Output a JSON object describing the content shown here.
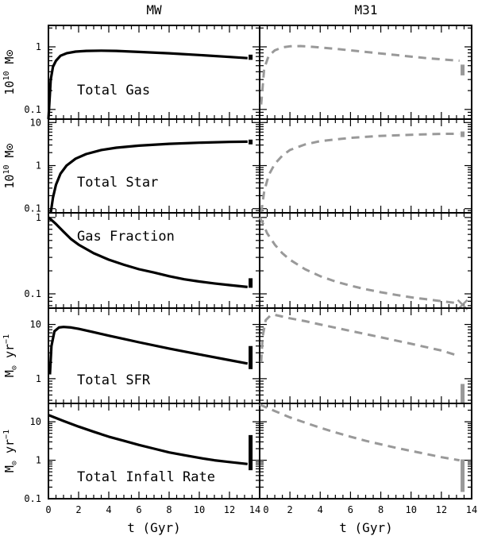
{
  "columns": [
    {
      "title": "MW"
    },
    {
      "title": "M31"
    }
  ],
  "xaxis": {
    "label": "t (Gyr)",
    "range": [
      0,
      14
    ],
    "ticks": [
      "0",
      "2",
      "4",
      "6",
      "8",
      "10",
      "12",
      "14"
    ]
  },
  "chart_data": [
    {
      "type": "line",
      "panel": "Total Gas",
      "ylabel": "10^10 M_sun",
      "ylabel_display": "10",
      "yscale": "log",
      "ylim": [
        0.07,
        2.2
      ],
      "yticks": [
        "1",
        "0.1"
      ],
      "series": [
        {
          "column": "MW",
          "style": "solid",
          "color": "#000000",
          "x": [
            0,
            0.15,
            0.3,
            0.5,
            0.8,
            1.2,
            1.8,
            2.5,
            3.5,
            4.5,
            6,
            8,
            10,
            12,
            13.2
          ],
          "y": [
            0.07,
            0.3,
            0.48,
            0.6,
            0.72,
            0.79,
            0.84,
            0.86,
            0.87,
            0.86,
            0.83,
            0.79,
            0.74,
            0.69,
            0.66
          ]
        },
        {
          "column": "M31",
          "style": "dashed",
          "color": "#999999",
          "x": [
            0.1,
            0.3,
            0.6,
            1,
            1.5,
            2,
            2.7,
            3.5,
            5,
            7,
            9,
            11,
            13.2
          ],
          "y": [
            0.12,
            0.45,
            0.72,
            0.88,
            0.98,
            1.02,
            1.03,
            1.0,
            0.93,
            0.83,
            0.74,
            0.66,
            0.6
          ]
        }
      ],
      "observations": [
        {
          "column": "MW",
          "x": 13.4,
          "y_low": 0.62,
          "y_high": 0.75
        },
        {
          "column": "M31",
          "x": 13.4,
          "y_low": 0.35,
          "y_high": 0.52
        }
      ]
    },
    {
      "type": "line",
      "panel": "Total Star",
      "ylabel": "10^10 M_sun",
      "ylabel_display": "10",
      "yscale": "log",
      "ylim": [
        0.08,
        12
      ],
      "yticks": [
        "10",
        "1",
        "0.1"
      ],
      "series": [
        {
          "column": "MW",
          "style": "solid",
          "color": "#000000",
          "x": [
            0.15,
            0.3,
            0.5,
            0.8,
            1.2,
            1.8,
            2.5,
            3.5,
            4.5,
            6,
            8,
            10,
            12,
            13.2
          ],
          "y": [
            0.08,
            0.18,
            0.36,
            0.65,
            1.0,
            1.45,
            1.85,
            2.3,
            2.6,
            2.9,
            3.2,
            3.4,
            3.55,
            3.6
          ]
        },
        {
          "column": "M31",
          "style": "dashed",
          "color": "#999999",
          "x": [
            0.1,
            0.3,
            0.6,
            1,
            1.5,
            2,
            3,
            4,
            6,
            8,
            10,
            12,
            13.2
          ],
          "y": [
            0.08,
            0.25,
            0.6,
            1.1,
            1.7,
            2.3,
            3.1,
            3.7,
            4.4,
            4.9,
            5.2,
            5.45,
            5.5
          ]
        }
      ],
      "observations": [
        {
          "column": "MW",
          "x": 13.4,
          "y_low": 3.2,
          "y_high": 3.9
        },
        {
          "column": "M31",
          "x": 13.4,
          "y_low": 4.6,
          "y_high": 6.2
        }
      ]
    },
    {
      "type": "line",
      "panel": "Gas Fraction",
      "ylabel": "",
      "yscale": "log",
      "ylim": [
        0.065,
        1.15
      ],
      "yticks": [
        "1",
        "0.1"
      ],
      "series": [
        {
          "column": "MW",
          "style": "solid",
          "color": "#000000",
          "x": [
            0,
            0.2,
            0.5,
            1,
            1.5,
            2,
            3,
            4,
            5,
            6,
            7,
            8,
            9,
            10,
            11,
            12,
            13.2
          ],
          "y": [
            1.0,
            0.93,
            0.82,
            0.65,
            0.52,
            0.44,
            0.34,
            0.28,
            0.24,
            0.21,
            0.19,
            0.17,
            0.155,
            0.145,
            0.137,
            0.13,
            0.123
          ]
        },
        {
          "column": "M31",
          "style": "dashed",
          "color": "#999999",
          "x": [
            0,
            0.2,
            0.5,
            1,
            1.5,
            2,
            3,
            4,
            5,
            6,
            7,
            8,
            9,
            10,
            11,
            12,
            13.2
          ],
          "y": [
            1.0,
            0.85,
            0.62,
            0.44,
            0.34,
            0.28,
            0.21,
            0.17,
            0.145,
            0.128,
            0.115,
            0.105,
            0.097,
            0.09,
            0.085,
            0.08,
            0.075
          ]
        }
      ],
      "observations": [
        {
          "column": "MW",
          "x": 13.4,
          "y_low": 0.12,
          "y_high": 0.16
        },
        {
          "column": "M31",
          "x": 13.4,
          "y_low": 0.072,
          "y_high": 0.072,
          "marker": "x"
        }
      ]
    },
    {
      "type": "line",
      "panel": "Total SFR",
      "ylabel": "M_sun yr^-1",
      "ylabel_display": "M",
      "yscale": "log",
      "ylim": [
        0.35,
        20
      ],
      "yticks": [
        "10",
        "1"
      ],
      "series": [
        {
          "column": "MW",
          "style": "solid",
          "color": "#000000",
          "x": [
            0.1,
            0.2,
            0.4,
            0.7,
            1,
            1.5,
            2,
            3,
            4,
            5,
            6,
            8,
            10,
            12,
            13.2
          ],
          "y": [
            1.2,
            4.0,
            7.5,
            8.8,
            9.0,
            8.8,
            8.3,
            7.2,
            6.2,
            5.4,
            4.7,
            3.6,
            2.8,
            2.2,
            1.9
          ]
        },
        {
          "column": "M31",
          "style": "dashed",
          "color": "#999999",
          "x": [
            0.1,
            0.2,
            0.4,
            0.7,
            1,
            1.5,
            2,
            3,
            4,
            6,
            8,
            10,
            12,
            13.2
          ],
          "y": [
            2.0,
            6.0,
            12,
            14.5,
            15,
            14,
            13,
            11.5,
            10,
            7.6,
            5.8,
            4.4,
            3.3,
            2.6
          ]
        }
      ],
      "observations": [
        {
          "column": "MW",
          "x": 13.4,
          "y_low": 1.5,
          "y_high": 4.0
        },
        {
          "column": "M31",
          "x": 13.4,
          "y_low": 0.35,
          "y_high": 0.8
        }
      ]
    },
    {
      "type": "line",
      "panel": "Total Infall Rate",
      "ylabel": "M_sun yr^-1",
      "ylabel_display": "M",
      "yscale": "log",
      "ylim": [
        0.1,
        30
      ],
      "yticks": [
        "10",
        "1",
        "0.1"
      ],
      "series": [
        {
          "column": "MW",
          "style": "solid",
          "color": "#000000",
          "x": [
            0,
            1,
            2,
            3,
            4,
            5,
            6,
            7,
            8,
            9,
            10,
            11,
            12,
            13.2
          ],
          "y": [
            15,
            10.5,
            7.5,
            5.5,
            4.1,
            3.2,
            2.5,
            2.0,
            1.6,
            1.35,
            1.15,
            1.0,
            0.9,
            0.8
          ]
        },
        {
          "column": "M31",
          "style": "dashed",
          "color": "#999999",
          "x": [
            0,
            1,
            2,
            3,
            4,
            5,
            6,
            7,
            8,
            9,
            10,
            11,
            12,
            13.2
          ],
          "y": [
            28,
            19,
            13,
            9.5,
            7.0,
            5.3,
            4.1,
            3.2,
            2.6,
            2.1,
            1.75,
            1.45,
            1.2,
            1.0
          ]
        }
      ],
      "observations": [
        {
          "column": "MW",
          "x": 13.4,
          "y_low": 0.55,
          "y_high": 4.5
        },
        {
          "column": "M31",
          "x": 13.4,
          "y_low": 0.15,
          "y_high": 1.05
        }
      ]
    }
  ]
}
